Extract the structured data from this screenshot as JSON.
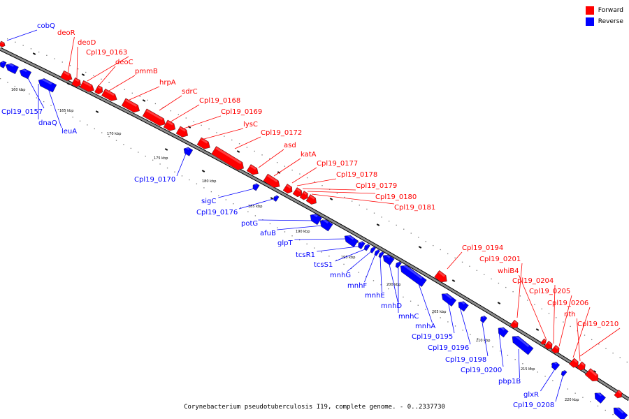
{
  "title": "Corynebacterium pseudotuberculosis I19, complete genome. - 0..2337730",
  "legend": [
    {
      "label": "Forward",
      "color": "#ff0000"
    },
    {
      "label": "Reverse",
      "color": "#0000ff"
    }
  ],
  "colors": {
    "forward": "#ff0000",
    "reverse": "#0000ff",
    "backbone": "#8c8c8c"
  },
  "ticks": [
    "160 kbp",
    "165 kbp",
    "170 kbp",
    "175 kbp",
    "180 kbp",
    "185 kbp",
    "190 kbp",
    "195 kbp",
    "200 kbp",
    "205 kbp",
    "210 kbp",
    "215 kbp",
    "220 kbp"
  ],
  "forward_labels": [
    "deoR",
    "deoD",
    "Cpl19_0163",
    "deoC",
    "pmmB",
    "hrpA",
    "sdrC",
    "Cpl19_0168",
    "Cpl19_0169",
    "lysC",
    "Cpl19_0172",
    "asd",
    "katA",
    "Cpl19_0177",
    "Cpl19_0178",
    "Cpl19_0179",
    "Cpl19_0180",
    "Cpl19_0181",
    "Cpl19_0194",
    "Cpl19_0201",
    "whiB4",
    "Cpl19_0204",
    "Cpl19_0205",
    "Cpl19_0206",
    "nth",
    "Cpl19_0210"
  ],
  "reverse_labels": [
    "cobQ",
    "Cpl19_0157",
    "dnaQ",
    "leuA",
    "Cpl19_0170",
    "sigC",
    "Cpl19_0176",
    "potG",
    "afuB",
    "glpT",
    "tcsR1",
    "tcsS1",
    "mnhG",
    "mnhF",
    "mnhE",
    "mnhD",
    "mnhC",
    "mnhA",
    "Cpl19_0195",
    "Cpl19_0196",
    "Cpl19_0198",
    "Cpl19_0200",
    "pbp1B",
    "glxR",
    "Cpl19_0208"
  ]
}
